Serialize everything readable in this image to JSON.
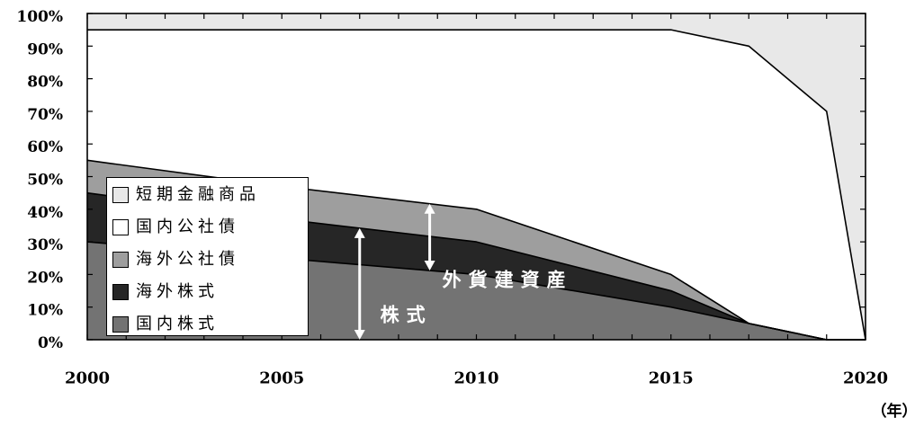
{
  "chart_data": {
    "type": "area",
    "stacked": true,
    "title": "",
    "xlabel": "（年）",
    "ylabel": "",
    "x": [
      2000,
      2005,
      2010,
      2015,
      2017,
      2018,
      2019,
      2020
    ],
    "xlim": [
      2000,
      2020
    ],
    "ylim": [
      0,
      100
    ],
    "xticks": [
      "2000",
      "2005",
      "2010",
      "2015",
      "2020"
    ],
    "yticks": [
      "0%",
      "10%",
      "20%",
      "30%",
      "40%",
      "50%",
      "60%",
      "70%",
      "80%",
      "90%",
      "100%"
    ],
    "grid": false,
    "legend": "bottom-left",
    "series": [
      {
        "name": "国内株式",
        "color": "#737373",
        "values": [
          30,
          25,
          20,
          10,
          5,
          2.5,
          0,
          0
        ]
      },
      {
        "name": "海外株式",
        "color": "#262626",
        "values": [
          15,
          12,
          10,
          5,
          0,
          0,
          0,
          0
        ]
      },
      {
        "name": "海外公社債",
        "color": "#9e9e9e",
        "values": [
          10,
          10,
          10,
          5,
          0,
          0,
          0,
          0
        ]
      },
      {
        "name": "国内公社債",
        "color": "#ffffff",
        "values": [
          40,
          48,
          55,
          75,
          85,
          77.5,
          70,
          0
        ]
      },
      {
        "name": "短期金融商品",
        "color": "#e8e8e8",
        "values": [
          5,
          5,
          5,
          5,
          10,
          20,
          30,
          100
        ]
      }
    ],
    "annotations": [
      {
        "text": "外貨建資産"
      },
      {
        "text": "株式"
      }
    ]
  }
}
